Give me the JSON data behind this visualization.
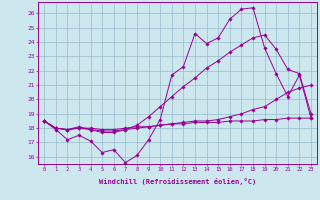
{
  "bg_color": "#cce8ee",
  "line_color": "#990099",
  "grid_color": "#99bbcc",
  "xlabel": "Windchill (Refroidissement éolien,°C)",
  "xlim": [
    -0.5,
    23.5
  ],
  "ylim": [
    15.5,
    26.8
  ],
  "yticks": [
    16,
    17,
    18,
    19,
    20,
    21,
    22,
    23,
    24,
    25,
    26
  ],
  "xticks": [
    0,
    1,
    2,
    3,
    4,
    5,
    6,
    7,
    8,
    9,
    10,
    11,
    12,
    13,
    14,
    15,
    16,
    17,
    18,
    19,
    20,
    21,
    22,
    23
  ],
  "series": [
    [
      18.5,
      17.9,
      17.2,
      17.5,
      17.1,
      16.3,
      16.5,
      15.6,
      16.1,
      17.2,
      18.6,
      21.7,
      22.3,
      24.6,
      23.9,
      24.3,
      25.6,
      26.3,
      26.4,
      23.6,
      21.8,
      20.2,
      21.7,
      18.7
    ],
    [
      18.5,
      18.0,
      17.9,
      18.0,
      18.0,
      17.9,
      17.9,
      18.0,
      18.1,
      18.1,
      18.2,
      18.3,
      18.3,
      18.4,
      18.4,
      18.4,
      18.5,
      18.5,
      18.5,
      18.6,
      18.6,
      18.7,
      18.7,
      18.7
    ],
    [
      18.5,
      18.0,
      17.9,
      18.1,
      17.9,
      17.7,
      17.7,
      17.9,
      18.2,
      18.8,
      19.5,
      20.2,
      20.9,
      21.5,
      22.2,
      22.7,
      23.3,
      23.8,
      24.3,
      24.5,
      23.5,
      22.1,
      21.8,
      19.0
    ],
    [
      18.5,
      18.0,
      17.9,
      18.0,
      17.9,
      17.8,
      17.8,
      17.9,
      18.0,
      18.1,
      18.2,
      18.3,
      18.4,
      18.5,
      18.5,
      18.6,
      18.8,
      19.0,
      19.3,
      19.5,
      20.0,
      20.5,
      20.8,
      21.0
    ]
  ]
}
